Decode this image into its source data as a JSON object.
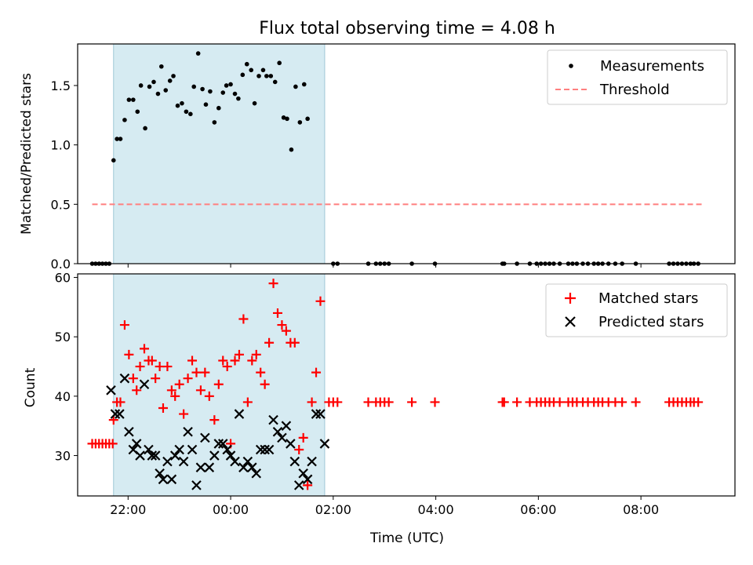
{
  "chart_data": [
    {
      "type": "scatter",
      "title": "Flux total observing time = 4.08 h",
      "ylabel": "Matched/Predicted stars",
      "xlabel": "",
      "ylim": [
        0,
        1.85
      ],
      "xlim": [
        "21:01",
        "09:50"
      ],
      "x_ticks": [
        "22:00",
        "00:00",
        "02:00",
        "04:00",
        "06:00",
        "08:00"
      ],
      "y_ticks": [
        "0.0",
        "0.5",
        "1.0",
        "1.5"
      ],
      "highlight_span": [
        "21:43",
        "01:50"
      ],
      "legend": "top-right",
      "series": [
        {
          "name": "Measurements",
          "marker": "dot",
          "color": "#000000",
          "points": [
            [
              "21:18",
              0
            ],
            [
              "21:22",
              0
            ],
            [
              "21:26",
              0
            ],
            [
              "21:30",
              0
            ],
            [
              "21:34",
              0
            ],
            [
              "21:38",
              0
            ],
            [
              "21:43",
              0.87
            ],
            [
              "21:47",
              1.05
            ],
            [
              "21:51",
              1.05
            ],
            [
              "21:56",
              1.21
            ],
            [
              "22:01",
              1.38
            ],
            [
              "22:06",
              1.38
            ],
            [
              "22:11",
              1.28
            ],
            [
              "22:15",
              1.5
            ],
            [
              "22:20",
              1.14
            ],
            [
              "22:25",
              1.49
            ],
            [
              "22:30",
              1.53
            ],
            [
              "22:35",
              1.43
            ],
            [
              "22:39",
              1.66
            ],
            [
              "22:44",
              1.46
            ],
            [
              "22:49",
              1.54
            ],
            [
              "22:53",
              1.58
            ],
            [
              "22:58",
              1.33
            ],
            [
              "23:03",
              1.35
            ],
            [
              "23:08",
              1.28
            ],
            [
              "23:13",
              1.26
            ],
            [
              "23:17",
              1.49
            ],
            [
              "23:22",
              1.77
            ],
            [
              "23:27",
              1.47
            ],
            [
              "23:31",
              1.34
            ],
            [
              "23:36",
              1.45
            ],
            [
              "23:41",
              1.19
            ],
            [
              "23:46",
              1.31
            ],
            [
              "23:51",
              1.44
            ],
            [
              "23:55",
              1.5
            ],
            [
              "00:00",
              1.51
            ],
            [
              "00:05",
              1.43
            ],
            [
              "00:09",
              1.39
            ],
            [
              "00:14",
              1.59
            ],
            [
              "00:19",
              1.68
            ],
            [
              "00:24",
              1.63
            ],
            [
              "00:28",
              1.35
            ],
            [
              "00:33",
              1.58
            ],
            [
              "00:38",
              1.63
            ],
            [
              "00:42",
              1.58
            ],
            [
              "00:47",
              1.58
            ],
            [
              "00:52",
              1.53
            ],
            [
              "00:57",
              1.69
            ],
            [
              "01:02",
              1.23
            ],
            [
              "01:06",
              1.22
            ],
            [
              "01:11",
              0.96
            ],
            [
              "01:16",
              1.49
            ],
            [
              "01:21",
              1.19
            ],
            [
              "01:26",
              1.51
            ],
            [
              "01:30",
              1.22
            ],
            [
              "02:00",
              0
            ],
            [
              "02:05",
              0
            ],
            [
              "02:41",
              0
            ],
            [
              "02:50",
              0
            ],
            [
              "02:55",
              0
            ],
            [
              "03:00",
              0
            ],
            [
              "03:05",
              0
            ],
            [
              "03:32",
              0
            ],
            [
              "03:59",
              0
            ],
            [
              "05:18",
              0
            ],
            [
              "05:20",
              0
            ],
            [
              "05:35",
              0
            ],
            [
              "05:50",
              0
            ],
            [
              "05:58",
              0
            ],
            [
              "06:03",
              0
            ],
            [
              "06:08",
              0
            ],
            [
              "06:13",
              0
            ],
            [
              "06:18",
              0
            ],
            [
              "06:25",
              0
            ],
            [
              "06:35",
              0
            ],
            [
              "06:40",
              0
            ],
            [
              "06:45",
              0
            ],
            [
              "06:52",
              0
            ],
            [
              "06:58",
              0
            ],
            [
              "07:05",
              0
            ],
            [
              "07:10",
              0
            ],
            [
              "07:15",
              0
            ],
            [
              "07:22",
              0
            ],
            [
              "07:30",
              0
            ],
            [
              "07:38",
              0
            ],
            [
              "07:54",
              0
            ],
            [
              "08:33",
              0
            ],
            [
              "08:38",
              0
            ],
            [
              "08:43",
              0
            ],
            [
              "08:48",
              0
            ],
            [
              "08:53",
              0
            ],
            [
              "08:58",
              0
            ],
            [
              "09:02",
              0
            ],
            [
              "09:07",
              0
            ]
          ]
        },
        {
          "name": "Threshold",
          "marker": "dashed-line",
          "color": "#ff7f7f",
          "points": [
            [
              "21:18",
              0.5
            ],
            [
              "09:12",
              0.5
            ]
          ]
        }
      ]
    },
    {
      "type": "scatter",
      "title": "",
      "ylabel": "Count",
      "xlabel": "Time (UTC)",
      "ylim": [
        23.2,
        60.6
      ],
      "xlim": [
        "21:01",
        "09:50"
      ],
      "x_ticks": [
        "22:00",
        "00:00",
        "02:00",
        "04:00",
        "06:00",
        "08:00"
      ],
      "y_ticks": [
        "30",
        "40",
        "50",
        "60"
      ],
      "highlight_span": [
        "21:43",
        "01:50"
      ],
      "legend": "top-right",
      "series": [
        {
          "name": "Matched stars",
          "marker": "plus",
          "color": "#ff0000",
          "points": [
            [
              "21:18",
              32
            ],
            [
              "21:22",
              32
            ],
            [
              "21:26",
              32
            ],
            [
              "21:30",
              32
            ],
            [
              "21:34",
              32
            ],
            [
              "21:38",
              32
            ],
            [
              "21:42",
              32
            ],
            [
              "21:43",
              36
            ],
            [
              "21:47",
              39
            ],
            [
              "21:51",
              39
            ],
            [
              "21:56",
              52
            ],
            [
              "22:01",
              47
            ],
            [
              "22:06",
              43
            ],
            [
              "22:10",
              41
            ],
            [
              "22:14",
              45
            ],
            [
              "22:19",
              48
            ],
            [
              "22:24",
              46
            ],
            [
              "22:28",
              46
            ],
            [
              "22:32",
              43
            ],
            [
              "22:37",
              45
            ],
            [
              "22:41",
              38
            ],
            [
              "22:46",
              45
            ],
            [
              "22:51",
              41
            ],
            [
              "22:55",
              40
            ],
            [
              "23:00",
              42
            ],
            [
              "23:05",
              37
            ],
            [
              "23:10",
              43
            ],
            [
              "23:15",
              46
            ],
            [
              "23:20",
              44
            ],
            [
              "23:25",
              41
            ],
            [
              "23:30",
              44
            ],
            [
              "23:35",
              40
            ],
            [
              "23:41",
              36
            ],
            [
              "23:46",
              42
            ],
            [
              "23:51",
              46
            ],
            [
              "23:56",
              45
            ],
            [
              "00:00",
              32
            ],
            [
              "00:05",
              46
            ],
            [
              "00:10",
              47
            ],
            [
              "00:15",
              53
            ],
            [
              "00:20",
              39
            ],
            [
              "00:25",
              46
            ],
            [
              "00:30",
              47
            ],
            [
              "00:35",
              44
            ],
            [
              "00:40",
              42
            ],
            [
              "00:45",
              49
            ],
            [
              "00:50",
              59
            ],
            [
              "00:55",
              54
            ],
            [
              "01:00",
              52
            ],
            [
              "01:05",
              51
            ],
            [
              "01:10",
              49
            ],
            [
              "01:15",
              49
            ],
            [
              "01:20",
              31
            ],
            [
              "01:25",
              33
            ],
            [
              "01:30",
              25
            ],
            [
              "01:35",
              39
            ],
            [
              "01:40",
              44
            ],
            [
              "01:45",
              56
            ],
            [
              "01:55",
              39
            ],
            [
              "02:00",
              39
            ],
            [
              "02:05",
              39
            ],
            [
              "02:41",
              39
            ],
            [
              "02:50",
              39
            ],
            [
              "02:55",
              39
            ],
            [
              "03:00",
              39
            ],
            [
              "03:05",
              39
            ],
            [
              "03:32",
              39
            ],
            [
              "03:59",
              39
            ],
            [
              "05:18",
              39
            ],
            [
              "05:20",
              39
            ],
            [
              "05:35",
              39
            ],
            [
              "05:50",
              39
            ],
            [
              "05:58",
              39
            ],
            [
              "06:03",
              39
            ],
            [
              "06:08",
              39
            ],
            [
              "06:13",
              39
            ],
            [
              "06:18",
              39
            ],
            [
              "06:25",
              39
            ],
            [
              "06:35",
              39
            ],
            [
              "06:40",
              39
            ],
            [
              "06:45",
              39
            ],
            [
              "06:52",
              39
            ],
            [
              "06:58",
              39
            ],
            [
              "07:05",
              39
            ],
            [
              "07:10",
              39
            ],
            [
              "07:15",
              39
            ],
            [
              "07:22",
              39
            ],
            [
              "07:30",
              39
            ],
            [
              "07:38",
              39
            ],
            [
              "07:54",
              39
            ],
            [
              "08:33",
              39
            ],
            [
              "08:38",
              39
            ],
            [
              "08:43",
              39
            ],
            [
              "08:48",
              39
            ],
            [
              "08:53",
              39
            ],
            [
              "08:58",
              39
            ],
            [
              "09:02",
              39
            ],
            [
              "09:07",
              39
            ]
          ]
        },
        {
          "name": "Predicted stars",
          "marker": "x",
          "color": "#000000",
          "points": [
            [
              "21:40",
              41
            ],
            [
              "21:45",
              37
            ],
            [
              "21:50",
              37
            ],
            [
              "21:56",
              43
            ],
            [
              "22:01",
              34
            ],
            [
              "22:06",
              31
            ],
            [
              "22:10",
              32
            ],
            [
              "22:14",
              30
            ],
            [
              "22:19",
              42
            ],
            [
              "22:24",
              31
            ],
            [
              "22:28",
              30
            ],
            [
              "22:32",
              30
            ],
            [
              "22:37",
              27
            ],
            [
              "22:41",
              26
            ],
            [
              "22:46",
              29
            ],
            [
              "22:51",
              26
            ],
            [
              "22:55",
              30
            ],
            [
              "23:00",
              31
            ],
            [
              "23:05",
              29
            ],
            [
              "23:10",
              34
            ],
            [
              "23:15",
              31
            ],
            [
              "23:20",
              25
            ],
            [
              "23:25",
              28
            ],
            [
              "23:30",
              33
            ],
            [
              "23:35",
              28
            ],
            [
              "23:41",
              30
            ],
            [
              "23:46",
              32
            ],
            [
              "23:51",
              32
            ],
            [
              "23:56",
              31
            ],
            [
              "00:00",
              30
            ],
            [
              "00:05",
              29
            ],
            [
              "00:10",
              37
            ],
            [
              "00:15",
              28
            ],
            [
              "00:20",
              29
            ],
            [
              "00:25",
              28
            ],
            [
              "00:30",
              27
            ],
            [
              "00:35",
              31
            ],
            [
              "00:40",
              31
            ],
            [
              "00:45",
              31
            ],
            [
              "00:50",
              36
            ],
            [
              "00:55",
              34
            ],
            [
              "01:00",
              33
            ],
            [
              "01:05",
              35
            ],
            [
              "01:10",
              32
            ],
            [
              "01:15",
              29
            ],
            [
              "01:20",
              25
            ],
            [
              "01:25",
              27
            ],
            [
              "01:30",
              26
            ],
            [
              "01:35",
              29
            ],
            [
              "01:40",
              37
            ],
            [
              "01:45",
              37
            ],
            [
              "01:50",
              32
            ]
          ]
        }
      ]
    }
  ]
}
